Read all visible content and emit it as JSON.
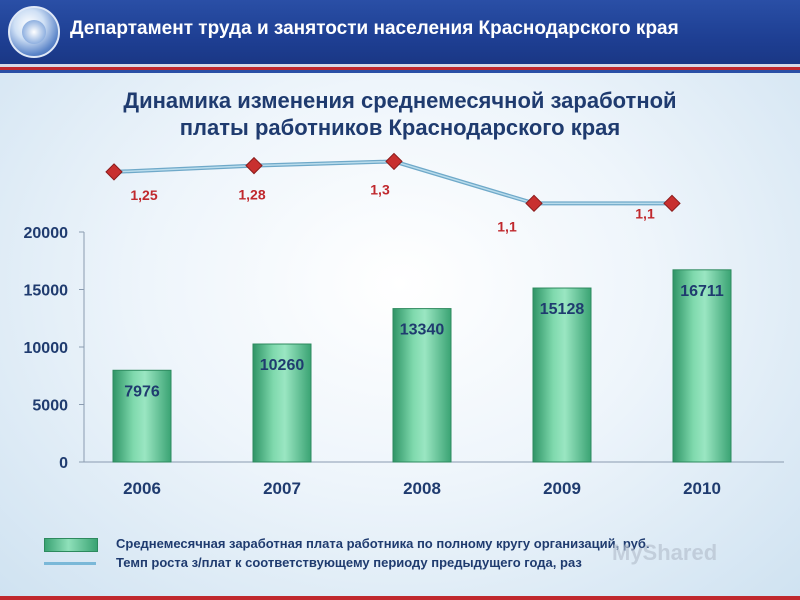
{
  "header": {
    "title": "Департамент труда и занятости населения Краснодарского края"
  },
  "colors": {
    "header_bg": "#1e3f93",
    "bar_fill": "#5cc28f",
    "line": "#8ec3dc",
    "marker": "#c0282d",
    "title": "#1f3b6f"
  },
  "chart_data": {
    "type": "bar",
    "title": "Динамика изменения среднемесячной заработной платы работников Краснодарского края",
    "title_lines": [
      "Динамика изменения среднемесячной заработной",
      "платы работников Краснодарского края"
    ],
    "categories": [
      "2006",
      "2007",
      "2008",
      "2009",
      "2010"
    ],
    "ylim": [
      0,
      20000
    ],
    "yticks": [
      "0",
      "5000",
      "10000",
      "15000",
      "20000"
    ],
    "grid": false,
    "series": [
      {
        "name": "Среднемесячная заработная плата работника по полному кругу организаций, руб.",
        "type": "bar",
        "values": [
          7976,
          10260,
          13340,
          15128,
          16711
        ],
        "labels": [
          "7976",
          "10260",
          "13340",
          "15128",
          "16711"
        ]
      },
      {
        "name": "Темп роста з/плат к соответствующему периоду предыдущего года, раз",
        "type": "line",
        "values": [
          1.25,
          1.28,
          1.3,
          1.1,
          1.1
        ],
        "labels": [
          "1,25",
          "1,28",
          "1,3",
          "1,1",
          "1,1"
        ]
      }
    ],
    "legend_position": "bottom"
  },
  "legend": {
    "items": [
      "Среднемесячная заработная плата работника по полному кругу организаций, руб.",
      "Темп роста з/плат к соответствующему периоду предыдущего года, раз"
    ]
  },
  "watermark": "MyShared"
}
